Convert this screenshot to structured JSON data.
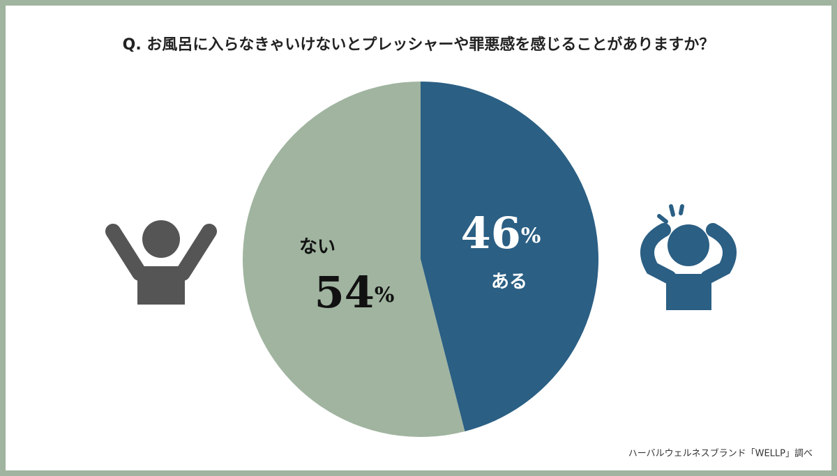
{
  "chart_data": {
    "type": "pie",
    "title": "Q. お風呂に入らなきゃいけないとプレッシャーや罪悪感を感じることがありますか？",
    "categories": [
      "ある",
      "ない"
    ],
    "values": [
      46,
      54
    ],
    "value_labels": [
      "46%",
      "54%"
    ],
    "colors": [
      "#2b5f84",
      "#a0b4a0"
    ],
    "note": "ハーバルウェルネスブランド「WELLP」調べ"
  }
}
